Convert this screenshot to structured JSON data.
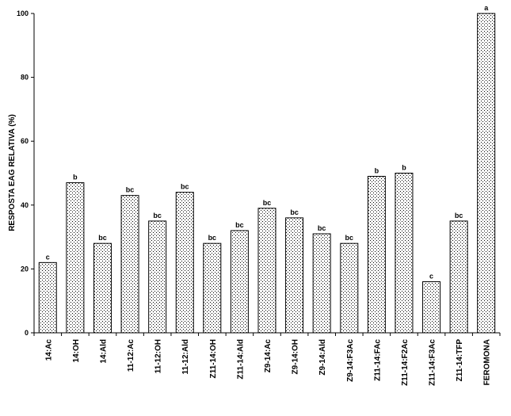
{
  "chart_data": {
    "type": "bar",
    "title": "",
    "xlabel": "",
    "ylabel": "RESPOSTA EAG RELATIVA (%)",
    "ylim": [
      0,
      100
    ],
    "yticks": [
      0,
      20,
      40,
      60,
      80,
      100
    ],
    "grid": false,
    "legend": "none",
    "bar_pattern": "dotted",
    "categories": [
      "14:Ac",
      "14:OH",
      "14:Ald",
      "11-12:Ac",
      "11-12:OH",
      "11-12:Ald",
      "Z11-14:OH",
      "Z11-14:Ald",
      "Z9-14:Ac",
      "Z9-14:OH",
      "Z9-14:Ald",
      "Z9-14:F3Ac",
      "Z11-14:FAc",
      "Z11-14:F2Ac",
      "Z11-14:F3Ac",
      "Z11-14:TFP",
      "FEROMONA"
    ],
    "values": [
      22,
      47,
      28,
      43,
      35,
      44,
      28,
      32,
      39,
      36,
      31,
      28,
      49,
      50,
      16,
      35,
      100
    ],
    "labels": [
      "c",
      "b",
      "bc",
      "bc",
      "bc",
      "bc",
      "bc",
      "bc",
      "bc",
      "bc",
      "bc",
      "bc",
      "b",
      "b",
      "c",
      "bc",
      "a"
    ]
  }
}
